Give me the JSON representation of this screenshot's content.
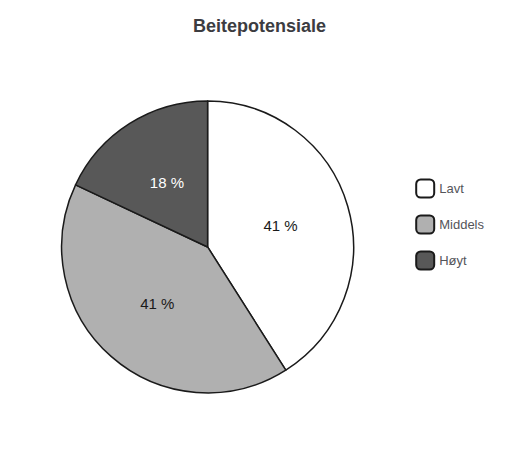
{
  "chart_data": {
    "type": "pie",
    "title": "Beitepotensiale",
    "categories": [
      "Lavt",
      "Middels",
      "Høyt"
    ],
    "values": [
      41,
      41,
      18
    ],
    "value_labels": [
      "41 %",
      "41 %",
      "18 %"
    ],
    "colors": [
      "#ffffff",
      "#b0b0b0",
      "#585858"
    ],
    "data_labels": true,
    "legend": "right"
  }
}
